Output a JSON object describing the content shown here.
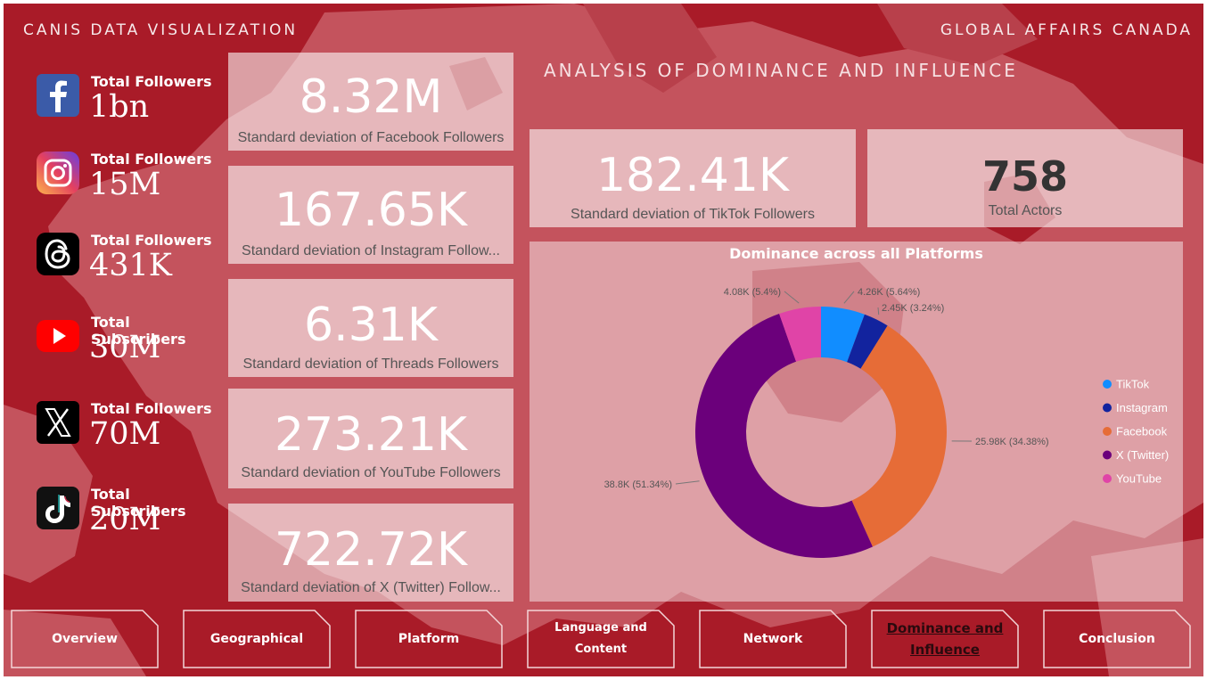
{
  "header": {
    "left_title": "CANIS DATA VISUALIZATION",
    "right_title": "GLOBAL AFFAIRS CANADA",
    "page_subtitle": "ANALYSIS OF DOMINANCE AND INFLUENCE"
  },
  "platforms": [
    {
      "icon": "facebook-icon",
      "label": "Total Followers",
      "value": "1bn"
    },
    {
      "icon": "instagram-icon",
      "label": "Total Followers",
      "value": "15M"
    },
    {
      "icon": "threads-icon",
      "label": "Total Followers",
      "value": "431K"
    },
    {
      "icon": "youtube-icon",
      "label": "Total Subscribers",
      "value": "30M"
    },
    {
      "icon": "x-twitter-icon",
      "label": "Total Followers",
      "value": "70M"
    },
    {
      "icon": "tiktok-icon",
      "label": "Total Subscribers",
      "value": "20M"
    }
  ],
  "stddev_cards": [
    {
      "value": "8.32M",
      "caption": "Standard deviation of Facebook Followers"
    },
    {
      "value": "167.65K",
      "caption": "Standard deviation of Instagram Follow..."
    },
    {
      "value": "6.31K",
      "caption": "Standard deviation of Threads Followers"
    },
    {
      "value": "273.21K",
      "caption": "Standard deviation of YouTube Followers"
    },
    {
      "value": "722.72K",
      "caption": "Standard deviation of X (Twitter) Follow..."
    }
  ],
  "tiktok_card": {
    "value": "182.41K",
    "caption": "Standard deviation of TikTok Followers"
  },
  "actors_card": {
    "value": "758",
    "caption": "Total Actors"
  },
  "chart_data": {
    "type": "pie",
    "title": "Dominance across all Platforms",
    "legend_position": "right",
    "categories": [
      "TikTok",
      "Instagram",
      "Facebook",
      "X (Twitter)",
      "YouTube"
    ],
    "values": [
      4.26,
      2.45,
      25.98,
      38.8,
      4.08
    ],
    "value_unit": "K",
    "percentages": [
      5.64,
      3.24,
      34.38,
      51.34,
      5.4
    ],
    "data_labels": [
      "4.26K (5.64%)",
      "2.45K (3.24%)",
      "25.98K (34.38%)",
      "38.8K (51.34%)",
      "4.08K (5.4%)"
    ],
    "colors": [
      "#118dff",
      "#12239e",
      "#e66c37",
      "#6b007b",
      "#e044a7"
    ]
  },
  "nav": [
    {
      "label": "Overview",
      "active": false
    },
    {
      "label": "Geographical",
      "active": false
    },
    {
      "label": "Platform",
      "active": false
    },
    {
      "label": "Language and Content",
      "active": false
    },
    {
      "label": "Network",
      "active": false
    },
    {
      "label": "Dominance and Influence",
      "active": true
    },
    {
      "label": "Conclusion",
      "active": false
    }
  ],
  "colors": {
    "background": "#a91b28",
    "map": "#c4535d"
  }
}
